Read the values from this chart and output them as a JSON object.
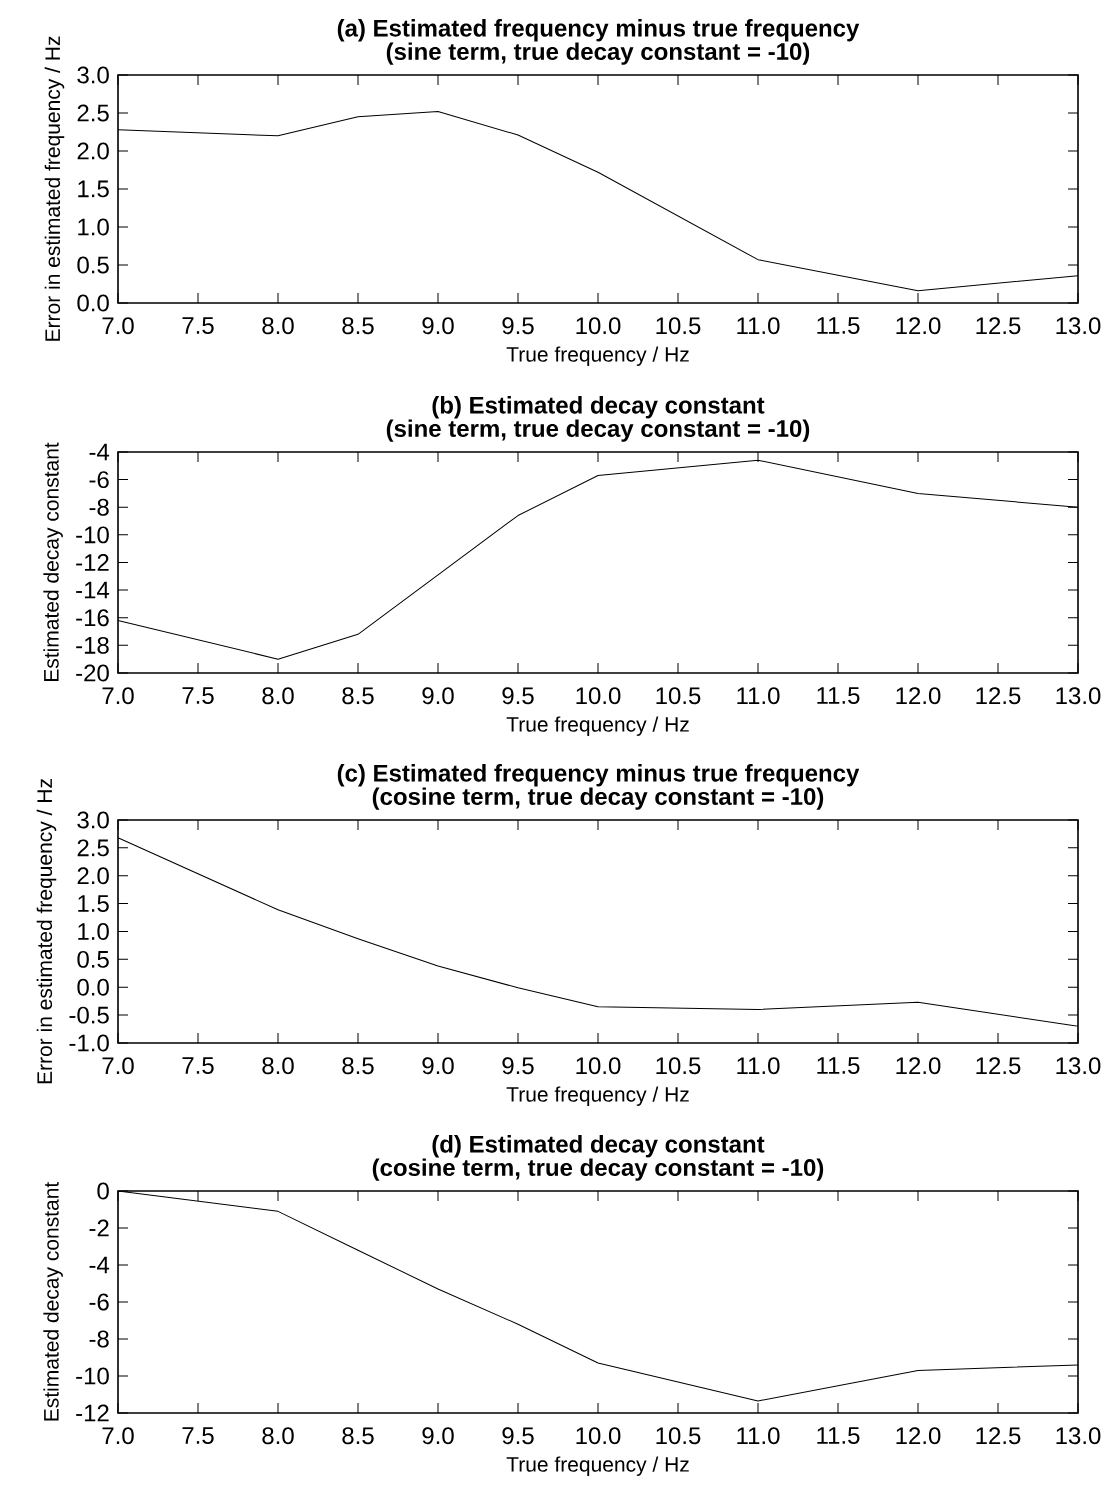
{
  "chart_data": [
    {
      "type": "line",
      "title": "(a) Estimated frequency minus true frequency",
      "subtitle": "(sine term, true decay constant = -10)",
      "xlabel": "True frequency / Hz",
      "ylabel": "Error in estimated frequency / Hz",
      "x": [
        7,
        8,
        8.5,
        9,
        9.5,
        10,
        11,
        12,
        13
      ],
      "values": [
        2.28,
        2.2,
        2.45,
        2.52,
        2.21,
        1.72,
        0.57,
        0.16,
        0.36
      ],
      "color": "#000000",
      "xlim": [
        7,
        13
      ],
      "ylim": [
        0,
        3
      ],
      "xticks": [
        {
          "value": 7,
          "label": "7.0"
        },
        7.5,
        {
          "value": 8,
          "label": "8.0"
        },
        8.5,
        {
          "value": 9,
          "label": "9.0"
        },
        9.5,
        {
          "value": 10,
          "label": "10.0"
        },
        10.5,
        {
          "value": 11,
          "label": "11.0"
        },
        11.5,
        {
          "value": 12,
          "label": "12.0"
        },
        12.5,
        {
          "value": 13,
          "label": "13.0"
        }
      ],
      "yticks": [
        {
          "value": 0,
          "label": "0.0"
        },
        0.5,
        {
          "value": 1,
          "label": "1.0"
        },
        1.5,
        {
          "value": 2,
          "label": "2.0"
        },
        2.5,
        {
          "value": 3,
          "label": "3.0"
        }
      ]
    },
    {
      "type": "line",
      "title": "(b) Estimated decay constant",
      "subtitle": "(sine term, true decay constant = -10)",
      "xlabel": "True frequency / Hz",
      "ylabel": "Estimated decay constant",
      "x": [
        7,
        8,
        8.5,
        9,
        9.5,
        10,
        11,
        12,
        13
      ],
      "values": [
        -16.2,
        -19.0,
        -17.2,
        -12.9,
        -8.6,
        -5.7,
        -4.6,
        -7.0,
        -8.0
      ],
      "color": "#000000",
      "xlim": [
        7,
        13
      ],
      "ylim": [
        -20,
        -4
      ],
      "xticks": [
        {
          "value": 7,
          "label": "7.0"
        },
        7.5,
        {
          "value": 8,
          "label": "8.0"
        },
        8.5,
        {
          "value": 9,
          "label": "9.0"
        },
        9.5,
        {
          "value": 10,
          "label": "10.0"
        },
        10.5,
        {
          "value": 11,
          "label": "11.0"
        },
        11.5,
        {
          "value": 12,
          "label": "12.0"
        },
        12.5,
        {
          "value": 13,
          "label": "13.0"
        }
      ],
      "yticks": [
        -20,
        -18,
        -16,
        -14,
        -12,
        -10,
        -8,
        -6,
        -4
      ]
    },
    {
      "type": "line",
      "title": "(c) Estimated frequency minus true frequency",
      "subtitle": "(cosine term, true decay constant = -10)",
      "xlabel": "True frequency / Hz",
      "ylabel": "Error in estimated frequency / Hz",
      "x": [
        7,
        8,
        8.5,
        9,
        9.5,
        10,
        11,
        12,
        13
      ],
      "values": [
        2.68,
        1.39,
        0.87,
        0.38,
        -0.01,
        -0.35,
        -0.4,
        -0.27,
        -0.7
      ],
      "color": "#000000",
      "xlim": [
        7,
        13
      ],
      "ylim": [
        -1,
        3
      ],
      "xticks": [
        {
          "value": 7,
          "label": "7.0"
        },
        7.5,
        {
          "value": 8,
          "label": "8.0"
        },
        8.5,
        {
          "value": 9,
          "label": "9.0"
        },
        9.5,
        {
          "value": 10,
          "label": "10.0"
        },
        10.5,
        {
          "value": 11,
          "label": "11.0"
        },
        11.5,
        {
          "value": 12,
          "label": "12.0"
        },
        12.5,
        {
          "value": 13,
          "label": "13.0"
        }
      ],
      "yticks": [
        {
          "value": -1,
          "label": "-1.0"
        },
        -0.5,
        {
          "value": 0,
          "label": "0.0"
        },
        0.5,
        {
          "value": 1,
          "label": "1.0"
        },
        1.5,
        {
          "value": 2,
          "label": "2.0"
        },
        2.5,
        {
          "value": 3,
          "label": "3.0"
        }
      ]
    },
    {
      "type": "line",
      "title": "(d) Estimated decay constant",
      "subtitle": "(cosine term, true decay constant = -10)",
      "xlabel": "True frequency / Hz",
      "ylabel": "Estimated decay constant",
      "x": [
        7,
        8,
        8.5,
        9,
        9.5,
        10,
        11,
        12,
        13
      ],
      "values": [
        0,
        -1.1,
        -3.2,
        -5.3,
        -7.2,
        -9.3,
        -11.35,
        -9.7,
        -9.4
      ],
      "color": "#000000",
      "xlim": [
        7,
        13
      ],
      "ylim": [
        -12,
        0
      ],
      "xticks": [
        {
          "value": 7,
          "label": "7.0"
        },
        7.5,
        {
          "value": 8,
          "label": "8.0"
        },
        8.5,
        {
          "value": 9,
          "label": "9.0"
        },
        9.5,
        {
          "value": 10,
          "label": "10.0"
        },
        10.5,
        {
          "value": 11,
          "label": "11.0"
        },
        11.5,
        {
          "value": 12,
          "label": "12.0"
        },
        12.5,
        {
          "value": 13,
          "label": "13.0"
        }
      ],
      "yticks": [
        -12,
        -10,
        -8,
        -6,
        -4,
        -2,
        0
      ]
    }
  ]
}
